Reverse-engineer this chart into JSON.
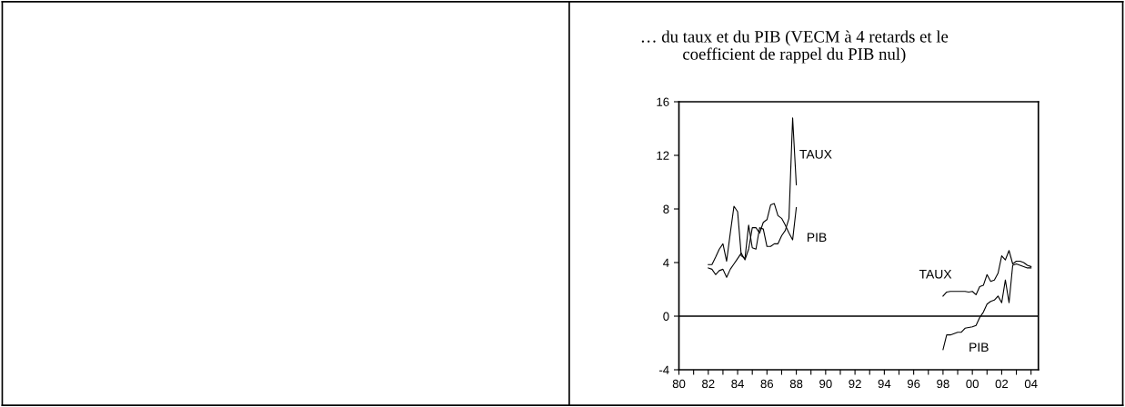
{
  "chart_data": {
    "type": "line",
    "title": "… du taux et du PIB (VECM à 4 retards et le\ncoefficient de rappel du PIB nul)",
    "x": [
      1982.0,
      1982.25,
      1982.5,
      1982.75,
      1983.0,
      1983.25,
      1983.5,
      1983.75,
      1984.0,
      1984.25,
      1984.5,
      1984.75,
      1985.0,
      1985.25,
      1985.5,
      1985.75,
      1986.0,
      1986.25,
      1986.5,
      1986.75,
      1987.0,
      1987.25,
      1987.5,
      1987.75,
      1988.0,
      1993.0,
      1998.0,
      1998.25,
      1998.5,
      1998.75,
      1999.0,
      1999.25,
      1999.5,
      1999.75,
      2000.0,
      2000.25,
      2000.5,
      2000.75,
      2001.0,
      2001.25,
      2001.5,
      2001.75,
      2002.0,
      2002.25,
      2002.5,
      2002.75,
      2003.0,
      2003.25,
      2003.5,
      2003.75,
      2004.0
    ],
    "series": [
      {
        "color": "#000000",
        "values": [
          3.85,
          3.85,
          4.4,
          5.0,
          5.4,
          4.1,
          6.2,
          8.2,
          7.8,
          4.5,
          4.3,
          6.8,
          5.1,
          5.0,
          6.6,
          6.5,
          5.2,
          5.2,
          5.4,
          5.4,
          6.0,
          6.4,
          7.3,
          14.8,
          9.8,
          null,
          1.5,
          1.8,
          1.85,
          1.85,
          1.85,
          1.85,
          1.85,
          1.8,
          1.85,
          1.6,
          2.2,
          2.3,
          3.1,
          2.6,
          2.7,
          3.2,
          4.5,
          4.2,
          4.9,
          3.9,
          4.1,
          4.1,
          4.0,
          3.8,
          3.7
        ]
      },
      {
        "color": "#000000",
        "values": [
          3.6,
          3.5,
          3.1,
          3.4,
          3.5,
          2.9,
          3.5,
          3.9,
          4.3,
          4.7,
          4.2,
          5.0,
          6.6,
          6.6,
          6.2,
          7.0,
          7.2,
          8.3,
          8.4,
          7.5,
          7.3,
          6.8,
          6.2,
          5.7,
          8.1,
          null,
          -2.5,
          -1.4,
          -1.4,
          -1.3,
          -1.2,
          -1.2,
          -0.9,
          -0.85,
          -0.8,
          -0.7,
          -0.1,
          0.3,
          0.9,
          1.1,
          1.2,
          1.5,
          1.0,
          2.7,
          1.0,
          3.8,
          3.9,
          3.8,
          3.7,
          3.6,
          3.6
        ]
      }
    ],
    "annotations": [
      "TAUX",
      "PIB",
      "TAUX",
      "PIB"
    ],
    "xlim": [
      1980,
      2004.5
    ],
    "xticks": [
      {
        "value": 1980,
        "label": "80"
      },
      {
        "value": 1981,
        "label": null
      },
      {
        "value": 1982,
        "label": "82"
      },
      {
        "value": 1983,
        "label": null
      },
      {
        "value": 1984,
        "label": "84"
      },
      {
        "value": 1985,
        "label": null
      },
      {
        "value": 1986,
        "label": "86"
      },
      {
        "value": 1987,
        "label": null
      },
      {
        "value": 1988,
        "label": "88"
      },
      {
        "value": 1989,
        "label": null
      },
      {
        "value": 1990,
        "label": "90"
      },
      {
        "value": 1991,
        "label": null
      },
      {
        "value": 1992,
        "label": "92"
      },
      {
        "value": 1993,
        "label": null
      },
      {
        "value": 1994,
        "label": "94"
      },
      {
        "value": 1995,
        "label": null
      },
      {
        "value": 1996,
        "label": "96"
      },
      {
        "value": 1997,
        "label": null
      },
      {
        "value": 1998,
        "label": "98"
      },
      {
        "value": 1999,
        "label": null
      },
      {
        "value": 2000,
        "label": "00"
      },
      {
        "value": 2001,
        "label": null
      },
      {
        "value": 2002,
        "label": "02"
      },
      {
        "value": 2003,
        "label": null
      },
      {
        "value": 2004,
        "label": "04"
      }
    ],
    "ylim": [
      -4,
      16
    ],
    "yticks": [
      -4,
      0,
      4,
      8,
      12,
      16
    ],
    "ref_lines": [
      {
        "axis": "y",
        "value": 0,
        "color": "#000000"
      }
    ],
    "grid": false,
    "legend": false,
    "marker": "none",
    "line_style": "solid"
  }
}
